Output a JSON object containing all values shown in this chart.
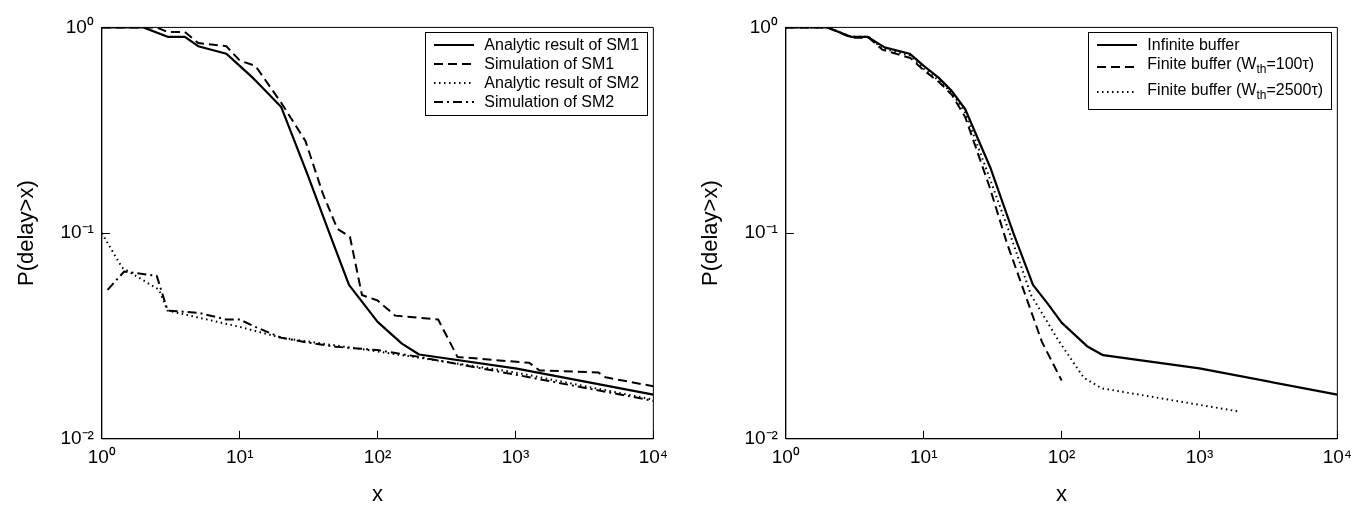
{
  "chart_data": [
    {
      "type": "line",
      "xlabel": "x",
      "ylabel": "P(delay>x)",
      "log": "xy",
      "xlim": [
        1,
        10000
      ],
      "ylim": [
        0.01,
        1
      ],
      "xticks": [
        {
          "value": 1,
          "label": "10⁰"
        },
        {
          "value": 10,
          "label": "10¹"
        },
        {
          "value": 100,
          "label": "10²"
        },
        {
          "value": 1000,
          "label": "10³"
        },
        {
          "value": 10000,
          "label": "10⁴"
        }
      ],
      "yticks": [
        {
          "value": 0.01,
          "label": "10⁻²"
        },
        {
          "value": 0.1,
          "label": "10⁻¹"
        },
        {
          "value": 1,
          "label": "10⁰"
        }
      ],
      "legend": "top right",
      "grid": false,
      "marker": "none",
      "series": [
        {
          "name": "Analytic result of SM1",
          "color": "#000000",
          "line_style": "solid",
          "x": [
            1,
            2,
            3,
            4,
            5,
            8,
            10,
            12.4,
            20,
            31,
            44.7,
            62,
            100,
            150,
            200,
            1000,
            10000
          ],
          "values": [
            1,
            1,
            0.9,
            0.9,
            0.81,
            0.745,
            0.65,
            0.57,
            0.41,
            0.193,
            0.1,
            0.056,
            0.037,
            0.029,
            0.0257,
            0.022,
            0.0164
          ]
        },
        {
          "name": "Simulation of SM1",
          "color": "#000000",
          "line_style": "dashed",
          "x": [
            1,
            2.5,
            3,
            4,
            5,
            8,
            10,
            13,
            20,
            30,
            40,
            51,
            63,
            77,
            100,
            134,
            275,
            380,
            1260,
            1490,
            4000,
            4500,
            10000
          ],
          "values": [
            1,
            1,
            0.95,
            0.95,
            0.84,
            0.81,
            0.69,
            0.65,
            0.43,
            0.28,
            0.156,
            0.105,
            0.096,
            0.05,
            0.047,
            0.0397,
            0.038,
            0.025,
            0.0234,
            0.0215,
            0.021,
            0.0199,
            0.018
          ]
        },
        {
          "name": "Analytic result of SM2",
          "color": "#000000",
          "line_style": "dotted",
          "x": [
            1,
            1.4,
            2.6,
            3,
            10,
            20,
            100,
            200,
            1000,
            10000
          ],
          "values": [
            0.1,
            0.068,
            0.053,
            0.042,
            0.035,
            0.031,
            0.0266,
            0.0248,
            0.021,
            0.0155
          ]
        },
        {
          "name": "Simulation of SM2",
          "color": "#000000",
          "line_style": "dashdot",
          "x": [
            1.1,
            1.45,
            2.5,
            3,
            5,
            8,
            10,
            13,
            20,
            30,
            50,
            100,
            200,
            1000,
            10000
          ],
          "values": [
            0.053,
            0.065,
            0.062,
            0.042,
            0.041,
            0.038,
            0.038,
            0.035,
            0.031,
            0.0295,
            0.028,
            0.027,
            0.025,
            0.0205,
            0.0153
          ]
        }
      ]
    },
    {
      "type": "line",
      "xlabel": "x",
      "ylabel": "P(delay>x)",
      "log": "xy",
      "xlim": [
        1,
        10000
      ],
      "ylim": [
        0.01,
        1
      ],
      "xticks": [
        {
          "value": 1,
          "label": "10⁰"
        },
        {
          "value": 10,
          "label": "10¹"
        },
        {
          "value": 100,
          "label": "10²"
        },
        {
          "value": 1000,
          "label": "10³"
        },
        {
          "value": 10000,
          "label": "10⁴"
        }
      ],
      "yticks": [
        {
          "value": 0.01,
          "label": "10⁻²"
        },
        {
          "value": 0.1,
          "label": "10⁻¹"
        },
        {
          "value": 1,
          "label": "10⁰"
        }
      ],
      "legend": "top right",
      "grid": false,
      "marker": "none",
      "series": [
        {
          "name": "Infinite buffer",
          "color": "#000000",
          "line_style": "solid",
          "x": [
            1,
            2,
            2.96,
            3.9,
            5.2,
            7.9,
            10,
            12.8,
            16,
            20,
            30.6,
            44.7,
            62,
            80,
            100,
            155,
            200,
            1000,
            10000
          ],
          "values": [
            1,
            1,
            0.9,
            0.9,
            0.8,
            0.745,
            0.65,
            0.57,
            0.49,
            0.4,
            0.206,
            0.1,
            0.056,
            0.045,
            0.0367,
            0.028,
            0.0255,
            0.022,
            0.0164
          ]
        },
        {
          "name": "Finite buffer (W$_{th}$=100τ)",
          "color": "#000000",
          "line_style": "dashed",
          "x": [
            1,
            2,
            3,
            4,
            5,
            8,
            10,
            13,
            16,
            20,
            30,
            40,
            50,
            72,
            100
          ],
          "values": [
            1,
            1,
            0.89,
            0.89,
            0.78,
            0.71,
            0.62,
            0.54,
            0.47,
            0.366,
            0.168,
            0.09,
            0.059,
            0.0296,
            0.0192
          ]
        },
        {
          "name": "Finite buffer (W$_{th}$=2500τ)",
          "color": "#000000",
          "line_style": "dotted",
          "x": [
            1,
            2,
            3,
            4,
            5,
            8,
            10,
            13,
            16,
            20,
            30,
            42,
            60,
            95,
            145,
            195,
            1900
          ],
          "values": [
            1,
            1,
            0.9,
            0.9,
            0.79,
            0.73,
            0.63,
            0.55,
            0.48,
            0.385,
            0.186,
            0.1,
            0.05,
            0.03,
            0.0198,
            0.0176,
            0.0136
          ]
        }
      ]
    }
  ]
}
